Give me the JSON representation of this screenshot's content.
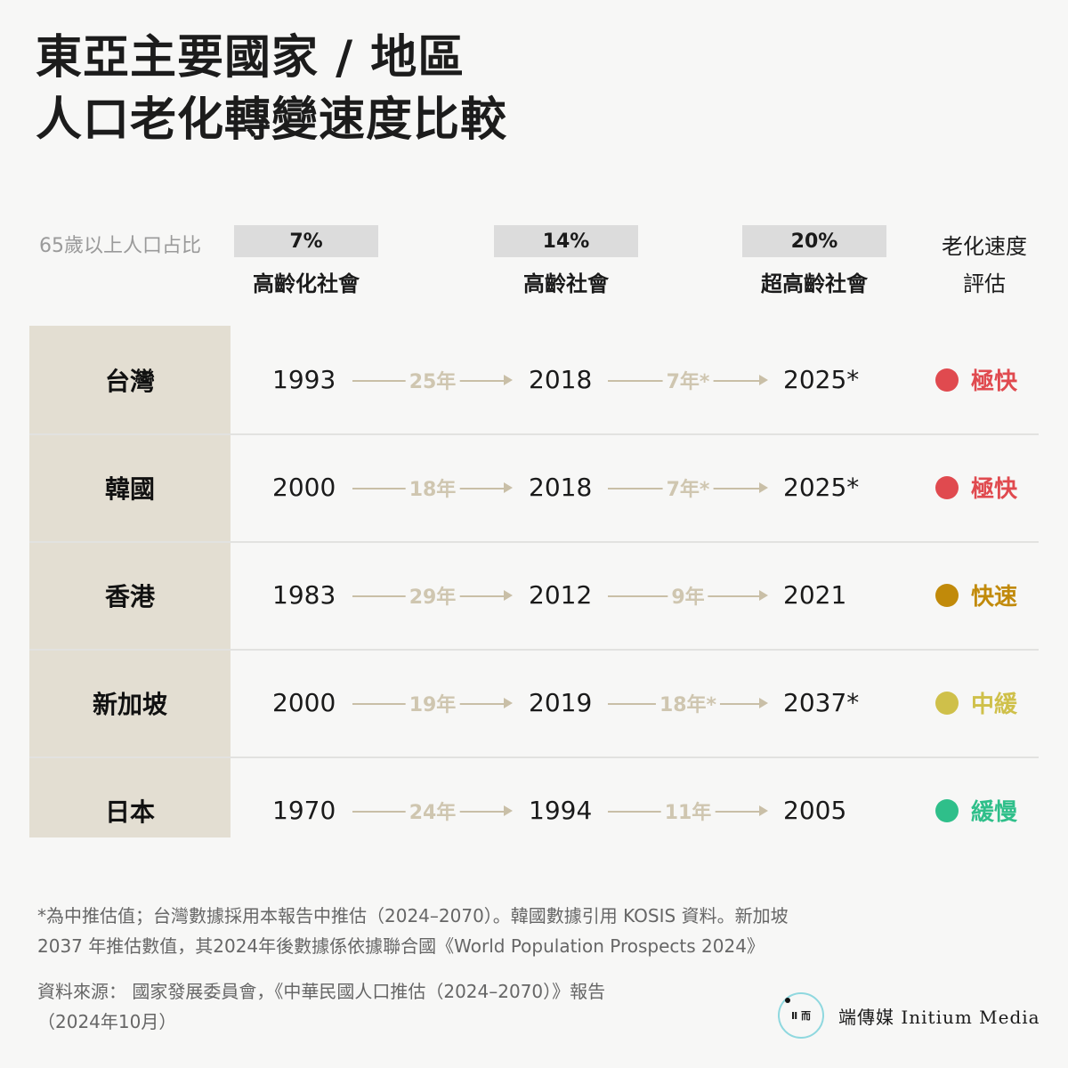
{
  "chart_data": {
    "type": "table",
    "title_line1": "東亞主要國家 / 地區",
    "title_line2": "人口老化轉變速度比較",
    "row_header": "65歲以上人口占比",
    "stages": [
      {
        "pct": "7%",
        "name": "高齡化社會"
      },
      {
        "pct": "14%",
        "name": "高齡社會"
      },
      {
        "pct": "20%",
        "name": "超高齡社會"
      }
    ],
    "speed_header_line1": "老化速度",
    "speed_header_line2": "評估",
    "rows": [
      {
        "region": "台灣",
        "y7": "1993",
        "gap1": "25年",
        "y14": "2018",
        "gap2": "7年*",
        "y20": "2025*",
        "speed": "極快",
        "color": "#e04a4f"
      },
      {
        "region": "韓國",
        "y7": "2000",
        "gap1": "18年",
        "y14": "2018",
        "gap2": "7年*",
        "y20": "2025*",
        "speed": "極快",
        "color": "#e04a4f"
      },
      {
        "region": "香港",
        "y7": "1983",
        "gap1": "29年",
        "y14": "2012",
        "gap2": "9年",
        "y20": "2021",
        "speed": "快速",
        "color": "#c18a0a"
      },
      {
        "region": "新加坡",
        "y7": "2000",
        "gap1": "19年",
        "y14": "2019",
        "gap2": "18年*",
        "y20": "2037*",
        "speed": "中緩",
        "color": "#cfc04a"
      },
      {
        "region": "日本",
        "y7": "1970",
        "gap1": "24年",
        "y14": "1994",
        "gap2": "11年",
        "y20": "2005",
        "speed": "緩慢",
        "color": "#2fbf8a"
      }
    ]
  },
  "footnote_line1": "*為中推估值；台灣數據採用本報告中推估（2024–2070）。韓國數據引用 KOSIS 資料。新加坡",
  "footnote_line2": "2037 年推估數值，其2024年後數據係依據聯合國《World Population Prospects 2024》",
  "source_line1": "資料來源： 國家發展委員會，《中華民國人口推估（2024–2070）》報告",
  "source_line2": "（2024年10月）",
  "logo": {
    "mark": "Ⅱ 而",
    "name": "端傳媒 Initium Media"
  }
}
